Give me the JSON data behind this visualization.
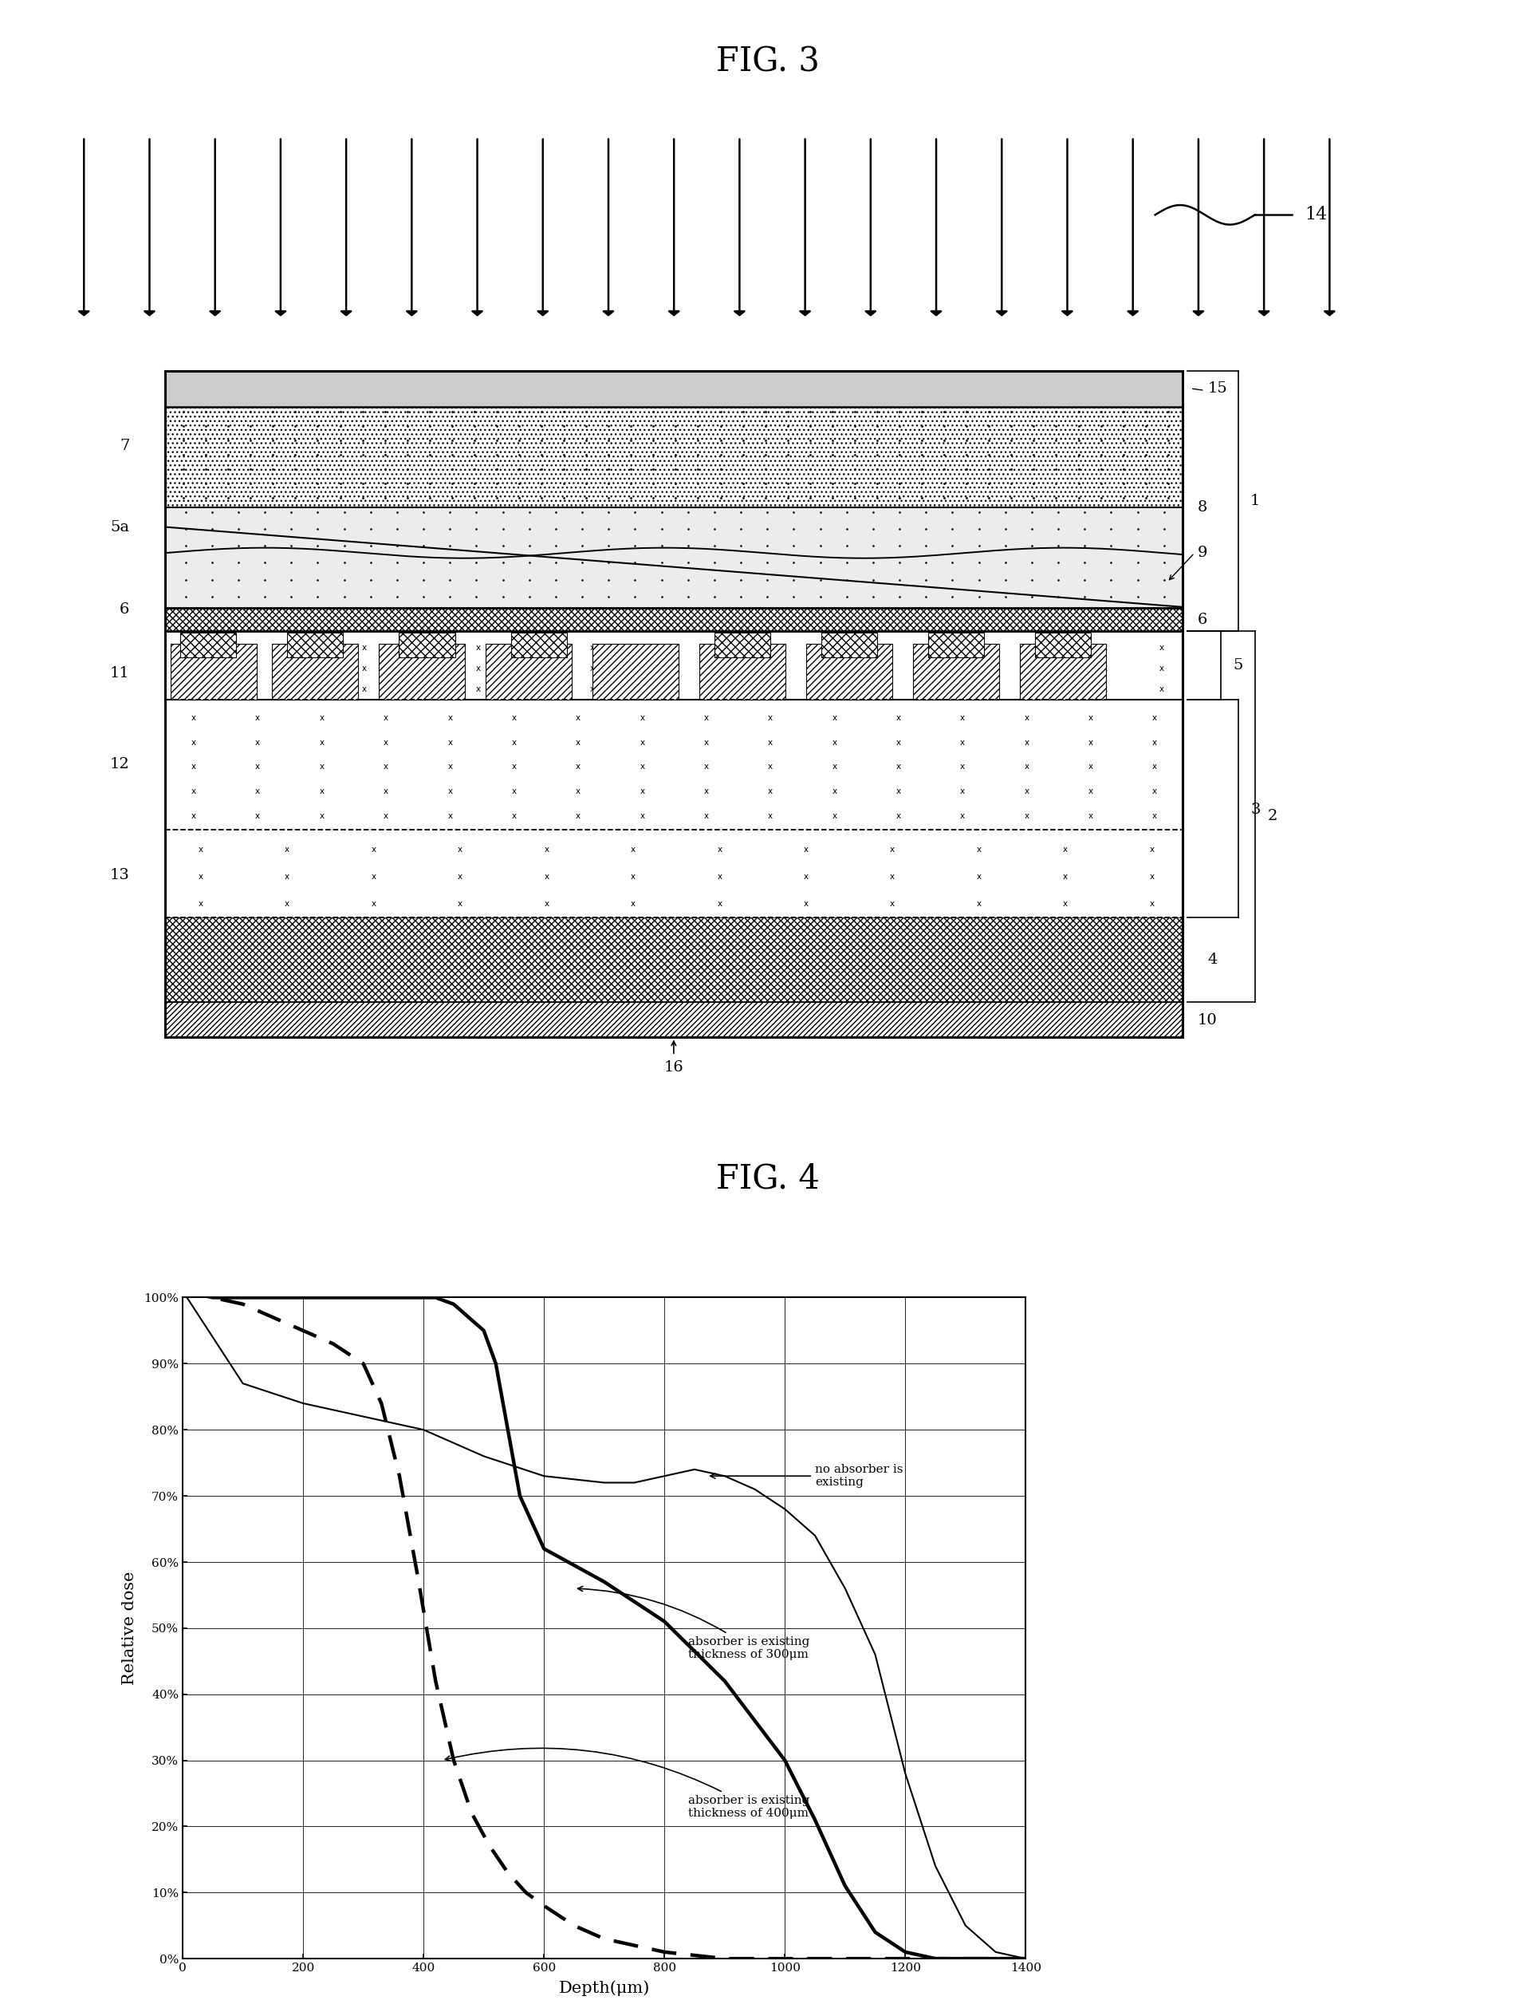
{
  "fig3_title": "FIG. 3",
  "fig4_title": "FIG. 4",
  "background_color": "#ffffff",
  "num_arrows": 20,
  "curve_no_absorber_x": [
    0,
    100,
    200,
    300,
    400,
    500,
    600,
    700,
    750,
    800,
    850,
    900,
    950,
    1000,
    1050,
    1100,
    1150,
    1200,
    1250,
    1300,
    1350,
    1400
  ],
  "curve_no_absorber_y": [
    101,
    87,
    84,
    82,
    80,
    76,
    73,
    72,
    72,
    73,
    74,
    73,
    71,
    68,
    64,
    56,
    46,
    28,
    14,
    5,
    1,
    0
  ],
  "curve_300um_x": [
    0,
    50,
    100,
    150,
    200,
    250,
    300,
    350,
    380,
    400,
    420,
    450,
    500,
    520,
    540,
    560,
    600,
    700,
    800,
    900,
    1000,
    1050,
    1100,
    1150,
    1200,
    1250,
    1300,
    1400
  ],
  "curve_300um_y": [
    101,
    100,
    100,
    100,
    100,
    100,
    100,
    100,
    100,
    100,
    100,
    99,
    95,
    90,
    80,
    70,
    62,
    57,
    51,
    42,
    30,
    21,
    11,
    4,
    1,
    0,
    0,
    0
  ],
  "curve_400um_x": [
    0,
    50,
    100,
    150,
    200,
    250,
    300,
    330,
    360,
    390,
    420,
    450,
    480,
    510,
    540,
    570,
    600,
    650,
    700,
    750,
    800,
    900,
    1000,
    1200,
    1400
  ],
  "curve_400um_y": [
    101,
    100,
    99,
    97,
    95,
    93,
    90,
    84,
    73,
    58,
    42,
    30,
    22,
    17,
    13,
    10,
    8,
    5,
    3,
    2,
    1,
    0,
    0,
    0,
    0
  ],
  "xlabel": "Depth(μm)",
  "ylabel": "Relative dose",
  "xmax": 1400,
  "yticks": [
    0,
    10,
    20,
    30,
    40,
    50,
    60,
    70,
    80,
    90,
    100
  ],
  "xticks": [
    0,
    200,
    400,
    600,
    800,
    1000,
    1200,
    1400
  ],
  "annotation_no_absorber": "no absorber is\nexisting",
  "annotation_300um": "absorber is existing\nthickness of 300μm",
  "annotation_400um": "absorber is existing\nthickness of 400μm"
}
